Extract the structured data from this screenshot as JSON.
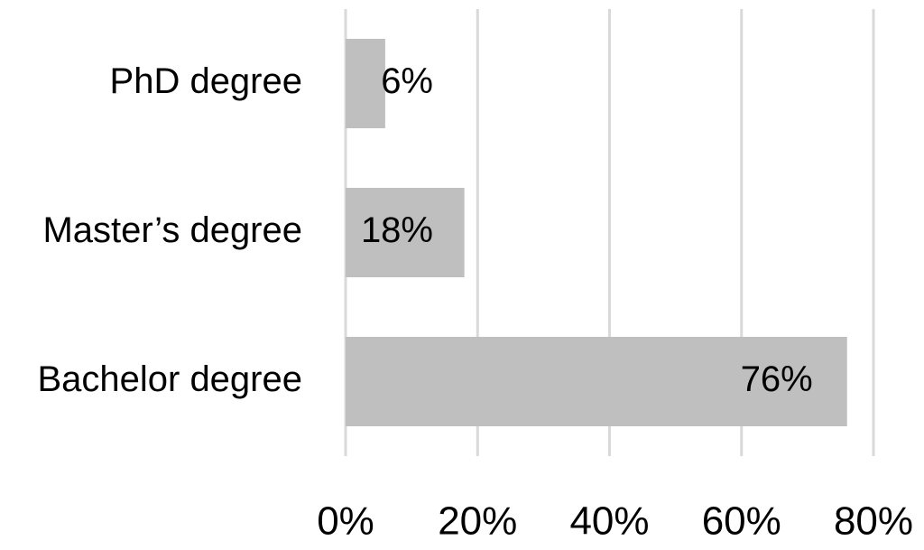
{
  "chart_data": {
    "type": "bar",
    "orientation": "horizontal",
    "categories": [
      "PhD degree",
      "Master’s degree",
      "Bachelor degree"
    ],
    "values": [
      6,
      18,
      76
    ],
    "value_labels": [
      "6%",
      "18%",
      "76%"
    ],
    "color": "#bfbfbf",
    "xlim": [
      0,
      80
    ],
    "xticks": [
      {
        "value": 0,
        "label": "0%"
      },
      {
        "value": 20,
        "label": "20%"
      },
      {
        "value": 40,
        "label": "40%"
      },
      {
        "value": 60,
        "label": "60%"
      },
      {
        "value": 80,
        "label": "80%"
      }
    ],
    "grid": true
  }
}
